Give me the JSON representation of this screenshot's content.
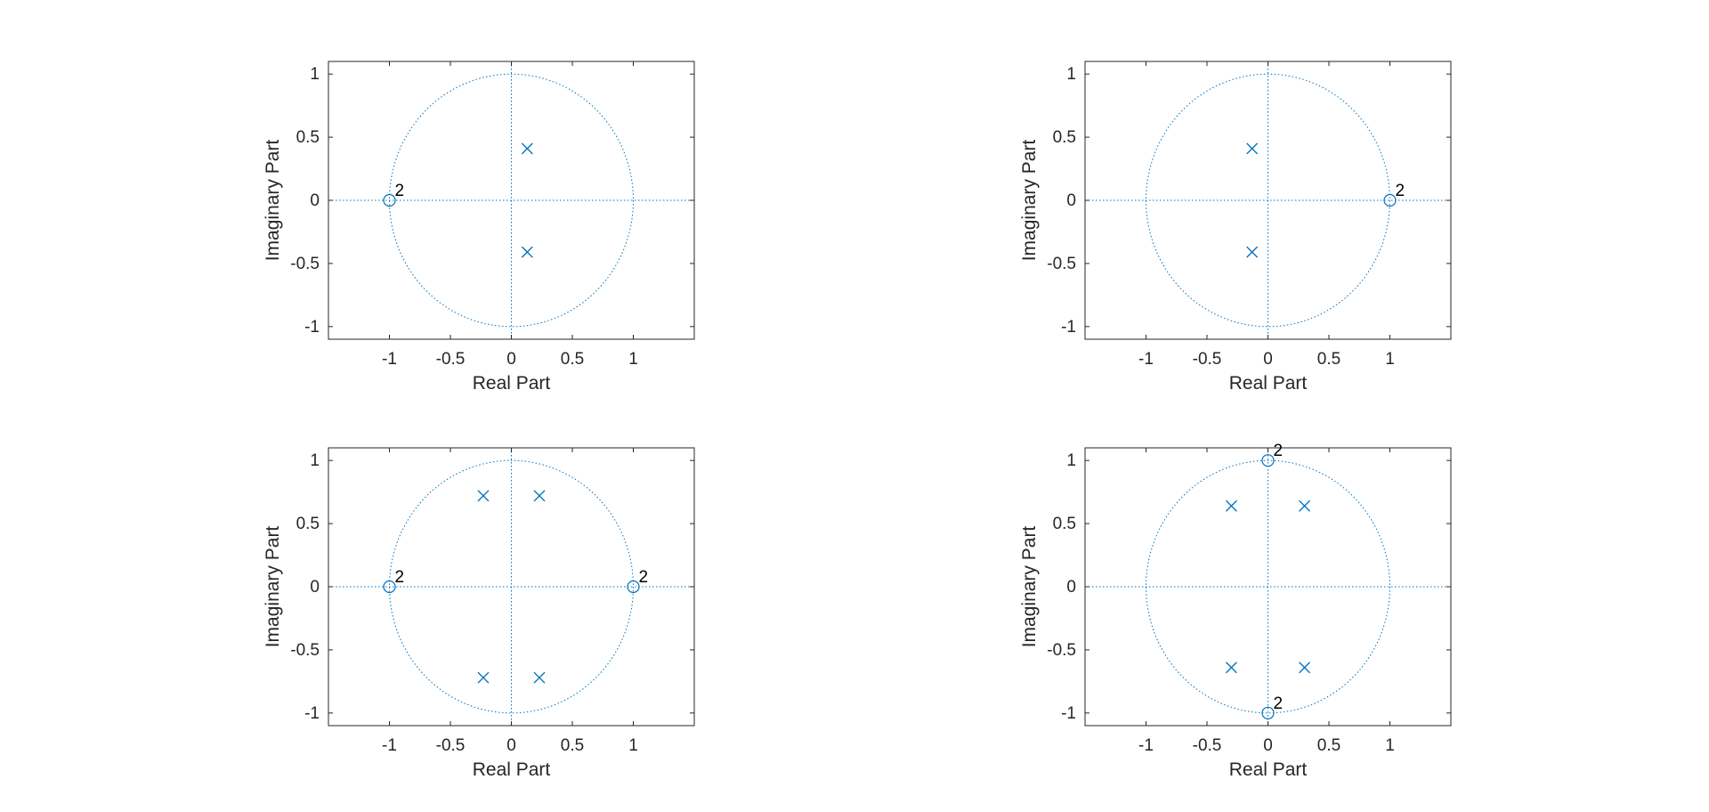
{
  "chart_data": [
    {
      "type": "scatter",
      "xlabel": "Real Part",
      "ylabel": "Imaginary Part",
      "xlim": [
        -1.5,
        1.5
      ],
      "ylim": [
        -1.1,
        1.1
      ],
      "xticks": [
        -1,
        -0.5,
        0,
        0.5,
        1
      ],
      "xtick_labels": [
        "-1",
        "-0.5",
        "0",
        "0.5",
        "1"
      ],
      "yticks": [
        -1,
        -0.5,
        0,
        0.5,
        1
      ],
      "ytick_labels": [
        "-1",
        "-0.5",
        "0",
        "0.5",
        "1"
      ],
      "unit_circle": true,
      "zeros": [
        {
          "x": -1,
          "y": 0,
          "label": "2"
        }
      ],
      "poles": [
        {
          "x": 0.13,
          "y": 0.41
        },
        {
          "x": 0.13,
          "y": -0.41
        }
      ]
    },
    {
      "type": "scatter",
      "xlabel": "Real Part",
      "ylabel": "Imaginary Part",
      "xlim": [
        -1.5,
        1.5
      ],
      "ylim": [
        -1.1,
        1.1
      ],
      "xticks": [
        -1,
        -0.5,
        0,
        0.5,
        1
      ],
      "xtick_labels": [
        "-1",
        "-0.5",
        "0",
        "0.5",
        "1"
      ],
      "yticks": [
        -1,
        -0.5,
        0,
        0.5,
        1
      ],
      "ytick_labels": [
        "-1",
        "-0.5",
        "0",
        "0.5",
        "1"
      ],
      "unit_circle": true,
      "zeros": [
        {
          "x": 1,
          "y": 0,
          "label": "2"
        }
      ],
      "poles": [
        {
          "x": -0.13,
          "y": 0.41
        },
        {
          "x": -0.13,
          "y": -0.41
        }
      ]
    },
    {
      "type": "scatter",
      "xlabel": "Real Part",
      "ylabel": "Imaginary Part",
      "xlim": [
        -1.5,
        1.5
      ],
      "ylim": [
        -1.1,
        1.1
      ],
      "xticks": [
        -1,
        -0.5,
        0,
        0.5,
        1
      ],
      "xtick_labels": [
        "-1",
        "-0.5",
        "0",
        "0.5",
        "1"
      ],
      "yticks": [
        -1,
        -0.5,
        0,
        0.5,
        1
      ],
      "ytick_labels": [
        "-1",
        "-0.5",
        "0",
        "0.5",
        "1"
      ],
      "unit_circle": true,
      "zeros": [
        {
          "x": -1,
          "y": 0,
          "label": "2"
        },
        {
          "x": 1,
          "y": 0,
          "label": "2"
        }
      ],
      "poles": [
        {
          "x": -0.23,
          "y": 0.72
        },
        {
          "x": 0.23,
          "y": 0.72
        },
        {
          "x": -0.23,
          "y": -0.72
        },
        {
          "x": 0.23,
          "y": -0.72
        }
      ]
    },
    {
      "type": "scatter",
      "xlabel": "Real Part",
      "ylabel": "Imaginary Part",
      "xlim": [
        -1.5,
        1.5
      ],
      "ylim": [
        -1.1,
        1.1
      ],
      "xticks": [
        -1,
        -0.5,
        0,
        0.5,
        1
      ],
      "xtick_labels": [
        "-1",
        "-0.5",
        "0",
        "0.5",
        "1"
      ],
      "yticks": [
        -1,
        -0.5,
        0,
        0.5,
        1
      ],
      "ytick_labels": [
        "-1",
        "-0.5",
        "0",
        "0.5",
        "1"
      ],
      "unit_circle": true,
      "zeros": [
        {
          "x": 0,
          "y": 1,
          "label": "2"
        },
        {
          "x": 0,
          "y": -1,
          "label": "2"
        }
      ],
      "poles": [
        {
          "x": -0.3,
          "y": 0.64
        },
        {
          "x": 0.3,
          "y": 0.64
        },
        {
          "x": -0.3,
          "y": -0.64
        },
        {
          "x": 0.3,
          "y": -0.64
        }
      ]
    }
  ],
  "colors": {
    "marker": "#0072BD",
    "axes": "#262626",
    "text": "#262626",
    "annotation": "#000000",
    "background": "#ffffff"
  }
}
